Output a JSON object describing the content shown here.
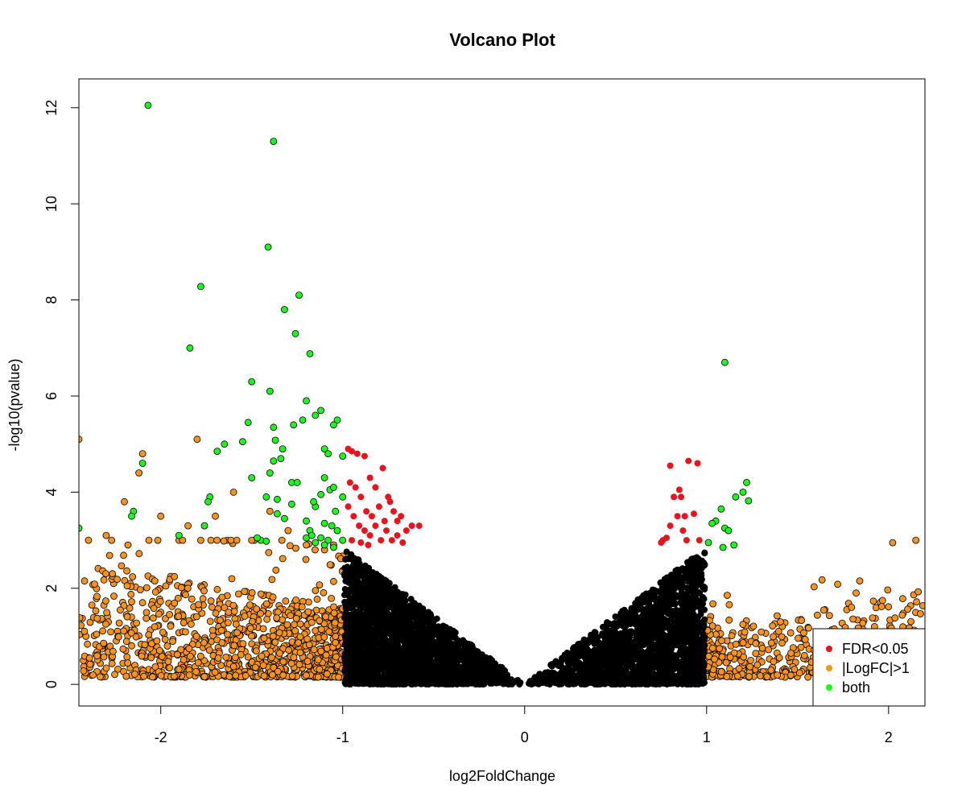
{
  "chart_data": {
    "type": "scatter",
    "title": "Volcano Plot",
    "xlabel": "log2FoldChange",
    "ylabel": "-log10(pvalue)",
    "xlim": [
      -2.45,
      2.2
    ],
    "ylim": [
      -0.45,
      12.6
    ],
    "x_ticks": [
      -2,
      -1,
      0,
      1,
      2
    ],
    "y_ticks": [
      0,
      2,
      4,
      6,
      8,
      10,
      12
    ],
    "grid": false,
    "legend_position": "bottom-right",
    "colors": {
      "background": "#000000",
      "fdr": "#e8141b",
      "logfc": "#f7931e",
      "both": "#1ef71e"
    },
    "legend": [
      {
        "label": "FDR<0.05",
        "color": "#e8141b"
      },
      {
        "label": "|LogFC|>1",
        "color": "#f7931e"
      },
      {
        "label": "both",
        "color": "#1ef71e"
      }
    ],
    "series": [
      {
        "name": "FDR<0.05",
        "color": "#e8141b",
        "points": [
          [
            -0.97,
            4.9
          ],
          [
            -0.95,
            4.85
          ],
          [
            -0.92,
            4.8
          ],
          [
            -0.88,
            4.75
          ],
          [
            -0.85,
            4.3
          ],
          [
            -0.82,
            4.1
          ],
          [
            -0.78,
            4.5
          ],
          [
            -0.75,
            3.9
          ],
          [
            -0.96,
            4.2
          ],
          [
            -0.93,
            4.1
          ],
          [
            -0.9,
            3.9
          ],
          [
            -0.87,
            3.6
          ],
          [
            -0.84,
            3.5
          ],
          [
            -0.8,
            3.7
          ],
          [
            -0.77,
            3.4
          ],
          [
            -0.72,
            3.6
          ],
          [
            -0.7,
            3.4
          ],
          [
            -0.68,
            3.5
          ],
          [
            -0.65,
            3.2
          ],
          [
            -0.62,
            3.3
          ],
          [
            -0.97,
            3.7
          ],
          [
            -0.94,
            3.5
          ],
          [
            -0.91,
            3.3
          ],
          [
            -0.88,
            3.2
          ],
          [
            -0.85,
            3.1
          ],
          [
            -0.82,
            3.3
          ],
          [
            -0.79,
            3.0
          ],
          [
            -0.76,
            3.2
          ],
          [
            -0.73,
            3.0
          ],
          [
            -0.7,
            3.1
          ],
          [
            -0.67,
            2.95
          ],
          [
            -0.95,
            3.0
          ],
          [
            -0.9,
            2.95
          ],
          [
            -0.86,
            2.9
          ],
          [
            -0.58,
            3.3
          ],
          [
            -0.74,
            3.8
          ],
          [
            0.75,
            2.95
          ],
          [
            0.78,
            3.05
          ],
          [
            0.8,
            4.55
          ],
          [
            0.82,
            3.9
          ],
          [
            0.84,
            3.5
          ],
          [
            0.85,
            4.05
          ],
          [
            0.87,
            3.2
          ],
          [
            0.89,
            3.0
          ],
          [
            0.9,
            4.65
          ],
          [
            0.93,
            3.55
          ],
          [
            0.95,
            4.6
          ],
          [
            0.96,
            3.0
          ],
          [
            0.8,
            3.3
          ],
          [
            0.86,
            3.9
          ],
          [
            0.88,
            3.5
          ],
          [
            0.76,
            3.0
          ]
        ]
      },
      {
        "name": "|LogFC|>1",
        "color": "#f7931e",
        "points": [
          [
            -2.45,
            5.1
          ],
          [
            -2.1,
            4.8
          ],
          [
            -2.12,
            4.4
          ],
          [
            -2.2,
            3.8
          ],
          [
            -2.3,
            3.1
          ],
          [
            -2.18,
            2.9
          ],
          [
            -2.0,
            3.5
          ],
          [
            -1.8,
            5.1
          ],
          [
            -1.6,
            4.0
          ],
          [
            -1.85,
            3.3
          ],
          [
            -1.7,
            3.5
          ],
          [
            -1.5,
            3.0
          ],
          [
            -1.4,
            3.6
          ],
          [
            -1.3,
            3.2
          ],
          [
            -1.2,
            2.9
          ],
          [
            -1.1,
            2.8
          ],
          [
            -1.05,
            2.9
          ]
        ]
      },
      {
        "name": "both",
        "color": "#1ef71e",
        "points": [
          [
            -2.07,
            12.05
          ],
          [
            -1.38,
            11.3
          ],
          [
            -1.41,
            9.1
          ],
          [
            -1.78,
            8.28
          ],
          [
            -1.24,
            8.1
          ],
          [
            -1.32,
            7.8
          ],
          [
            -1.26,
            7.3
          ],
          [
            -1.84,
            7.0
          ],
          [
            -1.18,
            6.88
          ],
          [
            -1.5,
            6.3
          ],
          [
            -1.4,
            6.1
          ],
          [
            -1.2,
            5.9
          ],
          [
            -1.12,
            5.7
          ],
          [
            -1.15,
            5.6
          ],
          [
            -1.03,
            5.5
          ],
          [
            -1.05,
            5.4
          ],
          [
            -1.27,
            5.4
          ],
          [
            -1.38,
            5.35
          ],
          [
            -1.22,
            5.5
          ],
          [
            -1.52,
            5.45
          ],
          [
            -1.65,
            5.0
          ],
          [
            -1.69,
            4.85
          ],
          [
            -1.55,
            5.05
          ],
          [
            -1.37,
            5.08
          ],
          [
            -1.34,
            4.7
          ],
          [
            -1.38,
            4.65
          ],
          [
            -1.33,
            4.9
          ],
          [
            -1.1,
            4.9
          ],
          [
            -1.08,
            4.8
          ],
          [
            -1.0,
            4.75
          ],
          [
            -2.1,
            4.6
          ],
          [
            -1.4,
            4.4
          ],
          [
            -1.5,
            4.3
          ],
          [
            -1.28,
            4.2
          ],
          [
            -1.25,
            4.2
          ],
          [
            -1.1,
            4.3
          ],
          [
            -1.07,
            4.05
          ],
          [
            -1.05,
            4.1
          ],
          [
            -1.12,
            3.95
          ],
          [
            -1.0,
            3.9
          ],
          [
            -1.73,
            3.9
          ],
          [
            -1.74,
            3.8
          ],
          [
            -1.42,
            3.9
          ],
          [
            -1.36,
            3.85
          ],
          [
            -1.28,
            3.75
          ],
          [
            -1.15,
            3.7
          ],
          [
            -1.16,
            3.8
          ],
          [
            -1.04,
            3.6
          ],
          [
            -2.15,
            3.6
          ],
          [
            -2.16,
            3.5
          ],
          [
            -1.76,
            3.3
          ],
          [
            -1.9,
            3.1
          ],
          [
            -1.36,
            3.55
          ],
          [
            -1.32,
            3.45
          ],
          [
            -1.2,
            3.4
          ],
          [
            -1.1,
            3.35
          ],
          [
            -1.06,
            3.3
          ],
          [
            -1.03,
            3.2
          ],
          [
            -1.18,
            3.2
          ],
          [
            -1.12,
            3.05
          ],
          [
            -1.08,
            3.0
          ],
          [
            -1.15,
            2.95
          ],
          [
            -1.1,
            2.9
          ],
          [
            -1.05,
            2.85
          ],
          [
            -1.0,
            3.0
          ],
          [
            -1.45,
            3.0
          ],
          [
            -1.42,
            2.98
          ],
          [
            -1.47,
            3.05
          ],
          [
            -1.2,
            3.05
          ],
          [
            -1.17,
            3.1
          ],
          [
            -2.45,
            3.25
          ],
          [
            1.1,
            6.7
          ],
          [
            1.22,
            4.2
          ],
          [
            1.2,
            4.0
          ],
          [
            1.16,
            3.9
          ],
          [
            1.23,
            3.82
          ],
          [
            1.08,
            3.65
          ],
          [
            1.05,
            3.4
          ],
          [
            1.03,
            3.35
          ],
          [
            1.1,
            3.25
          ],
          [
            1.12,
            3.2
          ],
          [
            1.01,
            2.95
          ],
          [
            1.15,
            2.9
          ],
          [
            1.09,
            2.85
          ]
        ]
      }
    ],
    "note_dense_clouds": "Dense black points fill a V-shaped region (|x|<1, y below ~2.8); dense orange points fill |x|>1, y below ~3."
  }
}
